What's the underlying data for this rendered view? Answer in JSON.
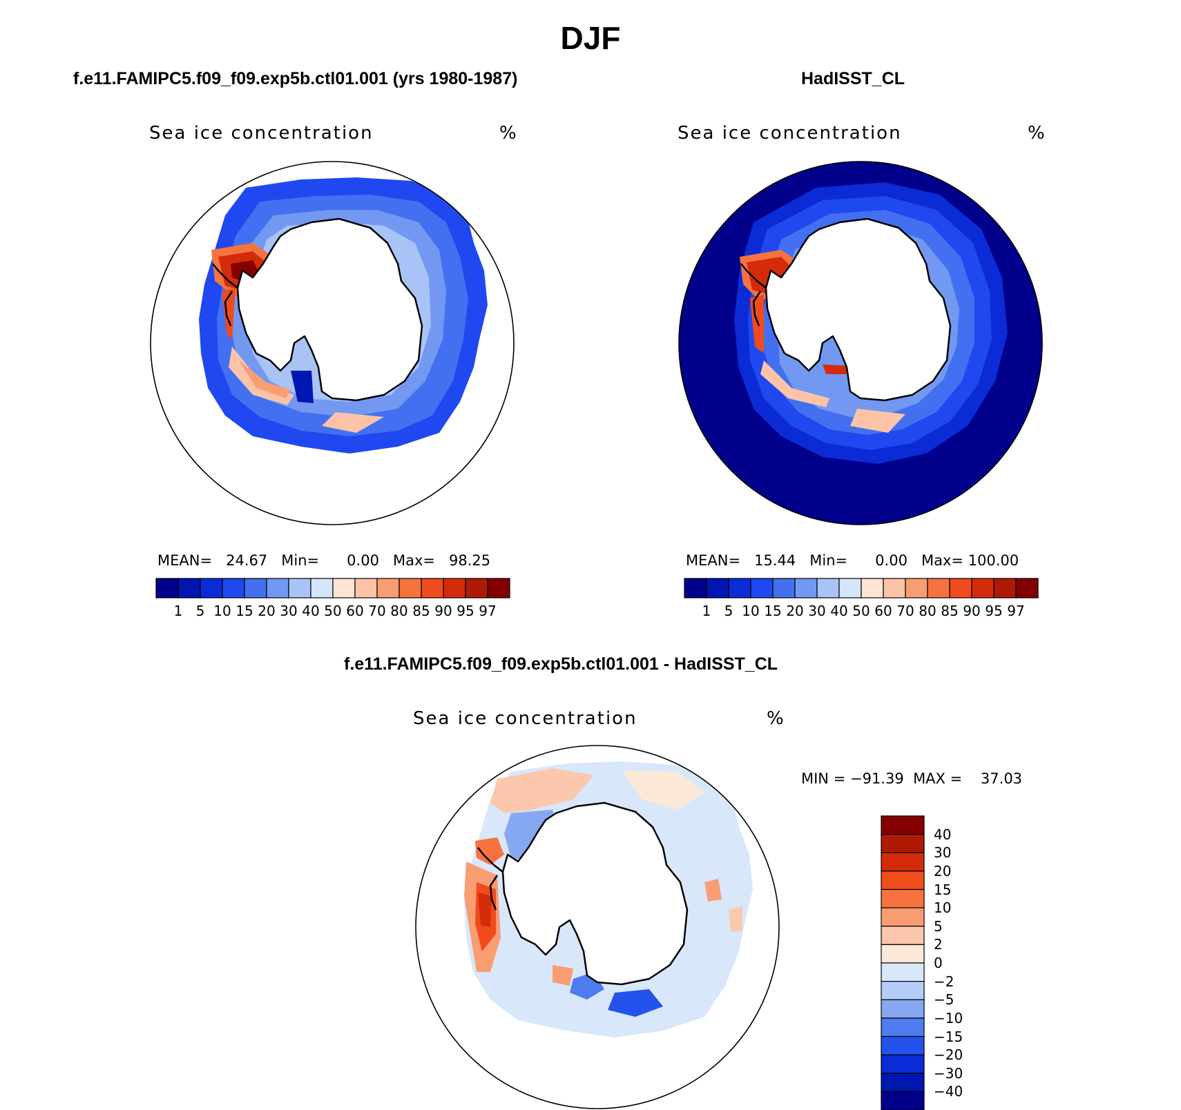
{
  "figure": {
    "title": "DJF"
  },
  "panels": [
    {
      "case_title": "f.e11.FAMIPC5.f09_f09.exp5b.ctl01.001 (yrs 1980-1987)",
      "variable": "Sea ice concentration",
      "unit": "%",
      "stats": {
        "mean_label": "MEAN=",
        "mean": "24.67",
        "min_label": "Min=",
        "min": "0.00",
        "max_label": "Max=",
        "max": "98.25"
      }
    },
    {
      "case_title": "HadISST_CL",
      "variable": "Sea ice concentration",
      "unit": "%",
      "stats": {
        "mean_label": "MEAN=",
        "mean": "15.44",
        "min_label": "Min=",
        "min": "0.00",
        "max_label": "Max=",
        "max": "100.00"
      }
    },
    {
      "case_title": "f.e11.FAMIPC5.f09_f09.exp5b.ctl01.001 - HadISST_CL",
      "variable": "Sea ice concentration",
      "unit": "%",
      "stats": {
        "min_label": "MIN =",
        "min": "−91.39",
        "max_label": "MAX =",
        "max": "37.03"
      }
    }
  ],
  "colorbars": {
    "concentration": {
      "levels": [
        "1",
        "5",
        "10",
        "15",
        "20",
        "30",
        "40",
        "50",
        "60",
        "70",
        "80",
        "85",
        "90",
        "95",
        "97"
      ],
      "colors": [
        "#00008b",
        "#0016b0",
        "#0a2bd6",
        "#1f48f0",
        "#4270f0",
        "#7298f2",
        "#a9c3f7",
        "#d6e6fa",
        "#fde4d3",
        "#fcc3a6",
        "#f99d73",
        "#f6733f",
        "#ef4b1c",
        "#d42c0a",
        "#b01a04",
        "#850000"
      ]
    },
    "difference": {
      "levels": [
        "40",
        "30",
        "20",
        "15",
        "10",
        "5",
        "2",
        "0",
        "−2",
        "−5",
        "−10",
        "−15",
        "−20",
        "−30",
        "−40"
      ],
      "colors": [
        "#850000",
        "#b01a04",
        "#d42c0a",
        "#f24e1c",
        "#f6733f",
        "#f99d73",
        "#fcc8ad",
        "#fde8d8",
        "#d9e7fa",
        "#b5cdf8",
        "#86a8f2",
        "#4f7cf0",
        "#2452ec",
        "#0a2bd6",
        "#0016b0",
        "#00008b"
      ]
    }
  }
}
